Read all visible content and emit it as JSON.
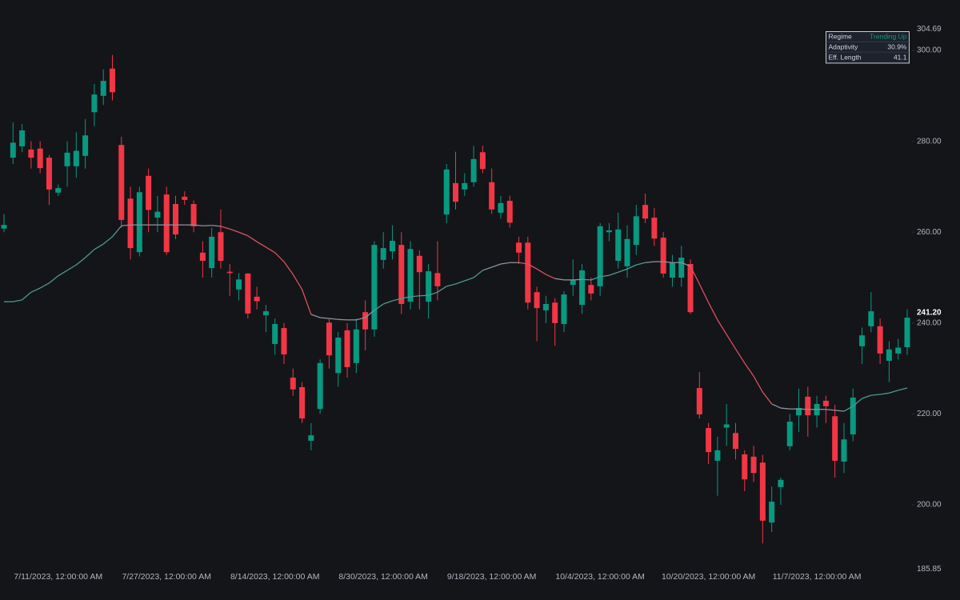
{
  "chart_data": {
    "type": "candlestick",
    "categories": [
      null,
      null,
      null,
      null,
      null,
      null,
      "7/11/2023, 12:00:00 AM",
      null,
      null,
      null,
      null,
      null,
      null,
      null,
      null,
      null,
      null,
      null,
      "7/27/2023, 12:00:00 AM",
      null,
      null,
      null,
      null,
      null,
      null,
      null,
      null,
      null,
      null,
      null,
      "8/14/2023, 12:00:00 AM",
      null,
      null,
      null,
      null,
      null,
      null,
      null,
      null,
      null,
      null,
      null,
      "8/30/2023, 12:00:00 AM",
      null,
      null,
      null,
      null,
      null,
      null,
      null,
      null,
      null,
      null,
      null,
      "9/18/2023, 12:00:00 AM",
      null,
      null,
      null,
      null,
      null,
      null,
      null,
      null,
      null,
      null,
      null,
      "10/4/2023, 12:00:00 AM",
      null,
      null,
      null,
      null,
      null,
      null,
      null,
      null,
      null,
      null,
      null,
      "10/20/2023, 12:00:00 AM",
      null,
      null,
      null,
      null,
      null,
      null,
      null,
      null,
      null,
      null,
      null,
      "11/7/2023, 12:00:00 AM",
      null,
      null,
      null,
      null,
      null,
      null,
      null,
      null,
      null,
      null
    ],
    "open": [
      260.8,
      276.4,
      278.9,
      278.2,
      278.4,
      276.4,
      268.7,
      274.5,
      274.5,
      276.8,
      286.4,
      290,
      296,
      279.2,
      267.4,
      255.6,
      272.4,
      263.2,
      268.3,
      266.2,
      267.8,
      266.2,
      255.5,
      252.1,
      260,
      251.3,
      247.4,
      250.9,
      245.8,
      241.7,
      235.4,
      238.9,
      228,
      225.9,
      214.1,
      221.1,
      240.1,
      229,
      238.4,
      231.2,
      242.4,
      238.6,
      253.9,
      255.8,
      257.2,
      244.7,
      254.8,
      244.7,
      251,
      263.9,
      270.8,
      269.4,
      271,
      277.6,
      271,
      264.3,
      266.9,
      257.7,
      257.7,
      246.8,
      242.8,
      244.5,
      239.8,
      248.4,
      244,
      248.4,
      248.1,
      260,
      253.7,
      252.5,
      257.2,
      266,
      263.2,
      258.8,
      250,
      250,
      253,
      225.7,
      216.9,
      209.7,
      217,
      215.8,
      211.1,
      210.6,
      209.3,
      196.1,
      203.9,
      212.9,
      219.7,
      223.8,
      219.7,
      222.9,
      219.5,
      209.5,
      215.5,
      234.9,
      239.3,
      239.3,
      231.7,
      233.3,
      234.7
    ],
    "high": [
      264,
      284.2,
      283.8,
      280,
      280,
      277,
      270.5,
      280,
      282,
      284.9,
      292.6,
      295.8,
      299,
      281,
      270,
      270,
      274,
      268,
      270,
      268,
      269,
      267,
      258,
      261,
      265,
      253,
      251,
      251,
      248,
      244,
      241,
      240,
      230,
      227,
      218,
      232,
      241,
      238,
      240,
      241,
      245,
      258,
      260,
      261.5,
      260,
      258,
      256,
      253,
      258,
      275,
      277.7,
      273,
      279,
      279,
      274,
      268,
      268,
      259,
      259,
      248,
      246,
      245.5,
      247,
      254,
      253,
      250,
      262,
      262,
      264.3,
      261.5,
      266,
      268.5,
      265.3,
      260,
      255,
      257,
      254,
      229.2,
      218,
      215,
      222.2,
      218,
      212,
      213,
      211,
      204,
      206,
      220,
      225.6,
      226,
      224,
      224,
      222,
      218,
      225.6,
      239,
      246.8,
      241,
      236,
      236.5,
      243
    ],
    "low": [
      260,
      275,
      277.6,
      274,
      273,
      266,
      268,
      270,
      272,
      274,
      283.3,
      288,
      289,
      261,
      254,
      254.7,
      260,
      260,
      255,
      258.5,
      266,
      260,
      250,
      250,
      252,
      246,
      245,
      241,
      243,
      238,
      233,
      231,
      224,
      218,
      212,
      220,
      230,
      226,
      228,
      229,
      234,
      237,
      252,
      254,
      242,
      243,
      243,
      241,
      245,
      262,
      265,
      268,
      270,
      273,
      264,
      263,
      261,
      253,
      243,
      236,
      240,
      235,
      238,
      246,
      242,
      245,
      246,
      258,
      252,
      250,
      255,
      262,
      257,
      250,
      248,
      248,
      242,
      219,
      209,
      202,
      213,
      210,
      203,
      205,
      191.5,
      194,
      200,
      212,
      216,
      215,
      217,
      218,
      206,
      207,
      214,
      231,
      238,
      231,
      227,
      232,
      233
    ],
    "close": [
      261.6,
      279.7,
      282.4,
      276.4,
      274.1,
      269.4,
      269.7,
      277.5,
      277.9,
      281.3,
      290.3,
      293.3,
      290.8,
      262.7,
      256.5,
      268.8,
      264.9,
      264.5,
      255.6,
      259.5,
      267.1,
      261.3,
      253.7,
      259,
      253.7,
      251,
      249.6,
      242.1,
      244.8,
      242.6,
      239.8,
      233.1,
      225.4,
      219,
      215.3,
      231.2,
      232.9,
      236.8,
      230.3,
      238.6,
      238.6,
      257.2,
      256.5,
      258.1,
      244.2,
      256.3,
      251.2,
      251.4,
      248.1,
      273.8,
      266.7,
      270.8,
      276.1,
      273.9,
      265,
      266.4,
      262.1,
      255.5,
      244.5,
      243.3,
      244.2,
      240,
      246.3,
      249.5,
      251.6,
      246.5,
      261.3,
      260.4,
      260.6,
      258.5,
      263.5,
      263,
      258.6,
      250.9,
      253.3,
      254.4,
      242.4,
      219.9,
      211.6,
      212,
      217.7,
      212.3,
      205.6,
      207,
      196.5,
      200.7,
      205.5,
      218.3,
      221.3,
      219.7,
      222.2,
      221.7,
      209.7,
      214.4,
      223.6,
      237.3,
      242.6,
      233.3,
      234.2,
      234.6,
      241.2
    ],
    "up_color": "#089981",
    "down_color": "#f23645",
    "ma": {
      "values": [
        244.7,
        244.7,
        245.1,
        246.8,
        247.7,
        248.8,
        250.4,
        251.6,
        252.8,
        254.4,
        256.2,
        257.4,
        259.0,
        261.4,
        261.6,
        261.6,
        261.6,
        261.6,
        261.6,
        261.6,
        261.6,
        261.6,
        261.4,
        261.5,
        261.3,
        260.7,
        260.0,
        259.2,
        257.9,
        256.7,
        255.5,
        253.5,
        250.7,
        247.4,
        241.9,
        241.2,
        241.0,
        240.8,
        240.7,
        240.7,
        241.2,
        242.8,
        244.2,
        244.9,
        245.4,
        245.8,
        246.0,
        246.1,
        246.8,
        248.1,
        248.6,
        249.3,
        250.0,
        251.6,
        252.3,
        253.0,
        253.3,
        253.3,
        253.0,
        251.9,
        250.7,
        249.8,
        249.5,
        249.5,
        249.6,
        249.5,
        250.2,
        250.5,
        251.2,
        251.9,
        252.8,
        253.3,
        253.5,
        253.5,
        253.3,
        253.3,
        252.5,
        248.6,
        244.5,
        240.7,
        237.5,
        234.3,
        231.2,
        228.3,
        224.8,
        222.2,
        221.3,
        221.1,
        221.1,
        221.0,
        221.0,
        221.0,
        220.8,
        220.6,
        221.7,
        223.4,
        224.1,
        224.3,
        224.6,
        225.2,
        225.7
      ],
      "colors": [
        "#4a9a8e",
        "#4a9a8e",
        "#4a9a8e",
        "#4a9a8e",
        "#4a9a8e",
        "#4a9a8e",
        "#4a9a8e",
        "#4a9a8e",
        "#4a9a8e",
        "#4a9a8e",
        "#4a9a8e",
        "#4a9a8e",
        "#4a9a8e",
        "#4a9a8e",
        "#8d929b",
        "#8d929b",
        "#8d929b",
        "#8d929b",
        "#8d929b",
        "#8d929b",
        "#8d929b",
        "#8d929b",
        "#8d929b",
        "#8d929b",
        "#8d929b",
        "#e04f5f",
        "#e04f5f",
        "#e04f5f",
        "#e04f5f",
        "#e04f5f",
        "#e04f5f",
        "#e04f5f",
        "#e04f5f",
        "#e04f5f",
        "#e04f5f",
        "#8d929b",
        "#8d929b",
        "#8d929b",
        "#8d929b",
        "#8d929b",
        "#8d929b",
        "#8d929b",
        "#4a9a8e",
        "#4a9a8e",
        "#4a9a8e",
        "#4a9a8e",
        "#4a9a8e",
        "#4a9a8e",
        "#4a9a8e",
        "#4a9a8e",
        "#4a9a8e",
        "#4a9a8e",
        "#4a9a8e",
        "#4a9a8e",
        "#8d929b",
        "#8d929b",
        "#8d929b",
        "#8d929b",
        "#e04f5f",
        "#e04f5f",
        "#e04f5f",
        "#e04f5f",
        "#8d929b",
        "#8d929b",
        "#8d929b",
        "#4a9a8e",
        "#4a9a8e",
        "#4a9a8e",
        "#4a9a8e",
        "#4a9a8e",
        "#4a9a8e",
        "#4a9a8e",
        "#8d929b",
        "#8d929b",
        "#8d929b",
        "#8d929b",
        "#8d929b",
        "#e04f5f",
        "#e04f5f",
        "#e04f5f",
        "#e04f5f",
        "#e04f5f",
        "#e04f5f",
        "#e04f5f",
        "#e04f5f",
        "#e04f5f",
        "#8d929b",
        "#8d929b",
        "#8d929b",
        "#8d929b",
        "#8d929b",
        "#8d929b",
        "#8d929b",
        "#8d929b",
        "#4a9a8e",
        "#4a9a8e",
        "#4a9a8e",
        "#4a9a8e",
        "#4a9a8e",
        "#4a9a8e",
        "#4a9a8e"
      ]
    },
    "ylim": [
      185.85,
      304.69
    ],
    "yticks": [
      {
        "value": 200,
        "label": "200.00"
      },
      {
        "value": 220,
        "label": "220.00"
      },
      {
        "value": 240,
        "label": "240.00"
      },
      {
        "value": 260,
        "label": "260.00"
      },
      {
        "value": 280,
        "label": "280.00"
      },
      {
        "value": 300,
        "label": "300.00"
      }
    ],
    "last_value_label": "241.20",
    "info_table": [
      {
        "label": "Regime",
        "value": "Trending Up",
        "color": "#089981"
      },
      {
        "label": "Adaptivity",
        "value": "30.9%",
        "color": "#d1d4dc"
      },
      {
        "label": "Eff. Length",
        "value": "41.1",
        "color": "#d1d4dc"
      }
    ]
  }
}
